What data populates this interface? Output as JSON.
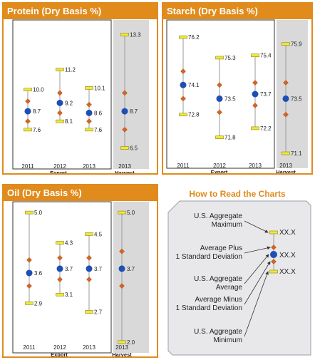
{
  "colors": {
    "accent": "#e08b1c",
    "mean_dot": "#1f4fb4",
    "sd_diamond": "#d9641f",
    "range_marker": "#f0e83a",
    "harvest_bg": "#d9d9d9"
  },
  "chart_data": [
    {
      "type": "range",
      "title": "Protein (Dry Basis %)",
      "categories": [
        "2011",
        "2012",
        "2013",
        "2013"
      ],
      "group_labels": [
        "Export",
        "Harvest"
      ],
      "series": [
        {
          "max": 10.0,
          "mean": 8.7,
          "min": 7.6
        },
        {
          "max": 11.2,
          "mean": 9.2,
          "min": 8.1
        },
        {
          "max": 10.1,
          "mean": 8.6,
          "min": 7.6
        },
        {
          "max": 13.3,
          "mean": 8.7,
          "min": 6.5
        }
      ],
      "labels": [
        {
          "max": "10.0",
          "mean": "8.7",
          "min": "7.6"
        },
        {
          "max": "11.2",
          "mean": "9.2",
          "min": "8.1"
        },
        {
          "max": "10.1",
          "mean": "8.6",
          "min": "7.6"
        },
        {
          "max": "13.3",
          "mean": "8.7",
          "min": "6.5"
        }
      ],
      "sd_approx": [
        0.6,
        0.6,
        0.5,
        1.1
      ],
      "ylim": [
        5.5,
        14.0
      ]
    },
    {
      "type": "range",
      "title": "Starch (Dry Basis %)",
      "categories": [
        "2011",
        "2012",
        "2013",
        "2013"
      ],
      "group_labels": [
        "Export",
        "Harvest"
      ],
      "series": [
        {
          "max": 76.2,
          "mean": 74.1,
          "min": 72.8
        },
        {
          "max": 75.3,
          "mean": 73.5,
          "min": 71.8
        },
        {
          "max": 75.4,
          "mean": 73.7,
          "min": 72.2
        },
        {
          "max": 75.9,
          "mean": 73.5,
          "min": 71.1
        }
      ],
      "labels": [
        {
          "max": "76.2",
          "mean": "74.1",
          "min": "72.8"
        },
        {
          "max": "75.3",
          "mean": "73.5",
          "min": "71.8"
        },
        {
          "max": "75.4",
          "mean": "73.7",
          "min": "72.2"
        },
        {
          "max": "75.9",
          "mean": "73.5",
          "min": "71.1"
        }
      ],
      "sd_approx": [
        0.6,
        0.6,
        0.5,
        0.7
      ],
      "ylim": [
        70.6,
        76.8
      ]
    },
    {
      "type": "range",
      "title": "Oil (Dry Basis %)",
      "categories": [
        "2011",
        "2012",
        "2013",
        "2013"
      ],
      "group_labels": [
        "Export",
        "Harvest"
      ],
      "series": [
        {
          "max": 5.0,
          "mean": 3.6,
          "min": 2.9
        },
        {
          "max": 4.3,
          "mean": 3.7,
          "min": 3.1
        },
        {
          "max": 4.5,
          "mean": 3.7,
          "min": 2.7
        },
        {
          "max": 5.0,
          "mean": 3.7,
          "min": 2.0
        }
      ],
      "labels": [
        {
          "max": "5.0",
          "mean": "3.6",
          "min": "2.9"
        },
        {
          "max": "4.3",
          "mean": "3.7",
          "min": "3.1"
        },
        {
          "max": "4.5",
          "mean": "3.7",
          "min": "2.7"
        },
        {
          "max": "5.0",
          "mean": "3.7",
          "min": "2.0"
        }
      ],
      "sd_approx": [
        0.3,
        0.25,
        0.25,
        0.4
      ],
      "ylim": [
        1.8,
        5.2
      ]
    }
  ],
  "howto": {
    "title": "How to Read the Charts",
    "labels": [
      "U.S. Aggregate Maximum",
      "Average Plus 1 Standard Deviation",
      "U.S. Aggregate Average",
      "Average Minus 1 Standard Deviation",
      "U.S. Aggregate Minimum"
    ],
    "value_label": "XX.X"
  }
}
